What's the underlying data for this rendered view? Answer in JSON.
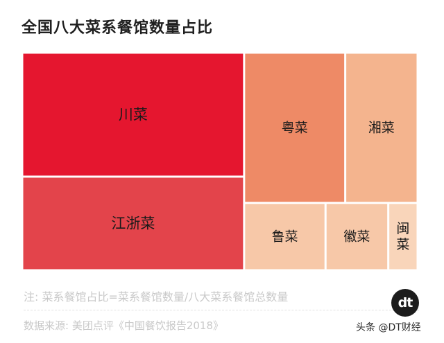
{
  "chart_data": {
    "type": "treemap",
    "title": "全国八大菜系餐馆数量占比",
    "items": [
      {
        "label": "川菜",
        "value": 30.6,
        "color": "#e5162f"
      },
      {
        "label": "江浙菜",
        "value": 23.1,
        "color": "#e3444b"
      },
      {
        "label": "粤菜",
        "value": 16.9,
        "color": "#ee8a66"
      },
      {
        "label": "湘菜",
        "value": 12.1,
        "color": "#f4b48e"
      },
      {
        "label": "鲁菜",
        "value": 6.1,
        "color": "#f7c8a8"
      },
      {
        "label": "徽菜",
        "value": 4.7,
        "color": "#f7c8a8"
      },
      {
        "label": "闽菜",
        "value": 2.2,
        "color": "#f9d5ba"
      }
    ]
  },
  "footer": {
    "note": "注: 菜系餐馆占比=菜系餐馆数量/八大菜系餐馆总数量",
    "source": "数据来源: 美团点评《中国餐饮报告2018》",
    "logo_text": "dt",
    "watermark": "头条 @DT财经"
  }
}
